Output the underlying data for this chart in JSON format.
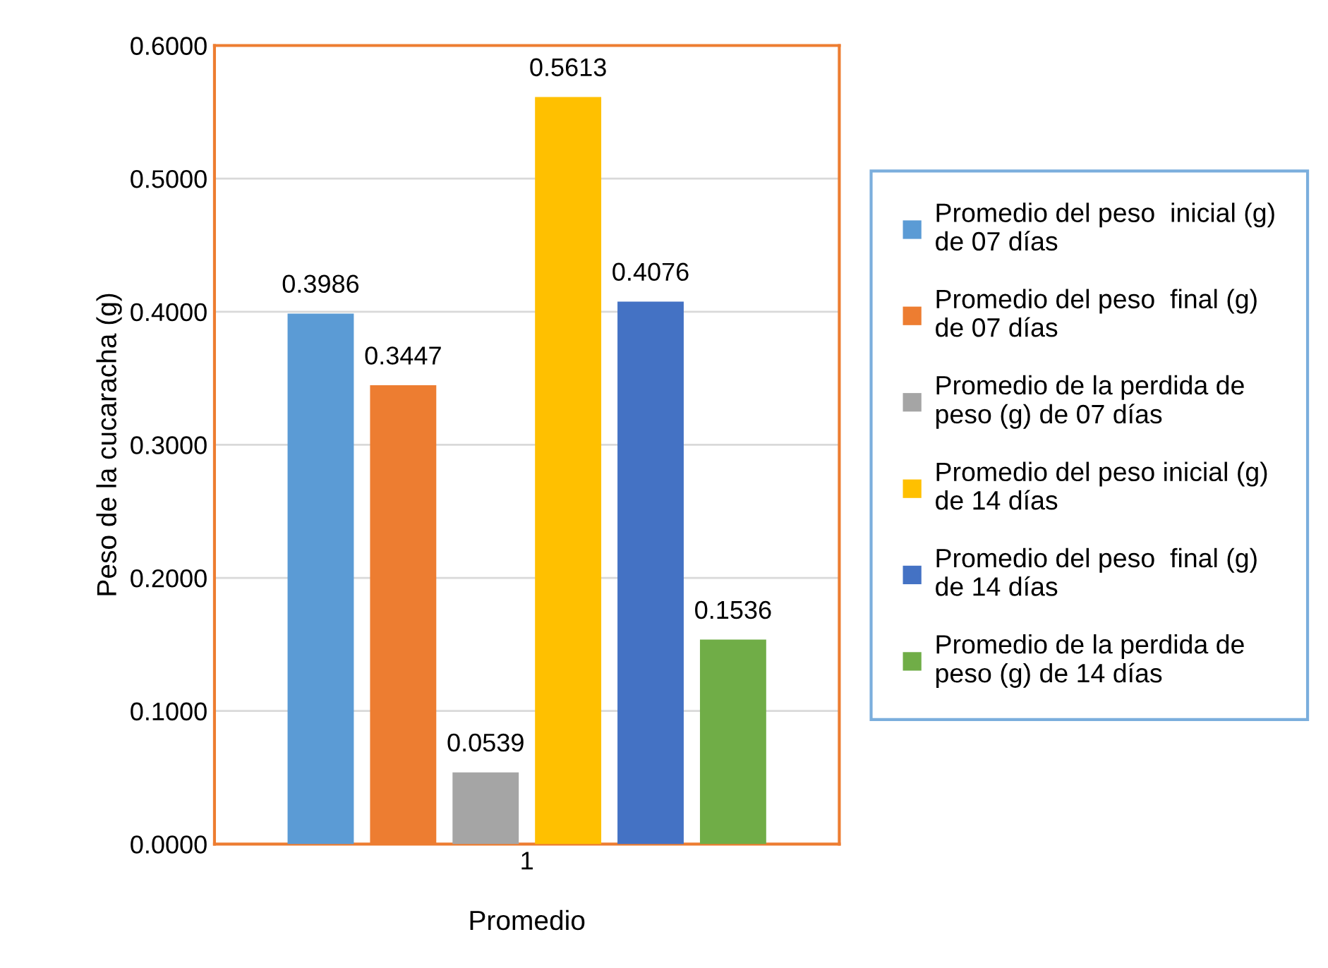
{
  "chart_data": {
    "type": "bar",
    "xlabel": "Promedio",
    "ylabel": "Peso de la cucaracha (g)",
    "categories": [
      "1"
    ],
    "series": [
      {
        "name": "Promedio del peso  inicial (g)\nde 07 días",
        "color": "#5b9bd5",
        "values": [
          0.3986
        ]
      },
      {
        "name": "Promedio del peso  final (g)\nde 07 días",
        "color": "#ed7d31",
        "values": [
          0.3447
        ]
      },
      {
        "name": "Promedio de la perdida de\npeso (g) de 07 días",
        "color": "#a5a5a5",
        "values": [
          0.0539
        ]
      },
      {
        "name": "Promedio del peso inicial (g)\nde 14 días",
        "color": "#ffc000",
        "values": [
          0.5613
        ]
      },
      {
        "name": "Promedio del peso  final (g)\nde 14 días",
        "color": "#4472c4",
        "values": [
          0.4076
        ]
      },
      {
        "name": "Promedio de la perdida de\npeso (g) de 14 días",
        "color": "#70ad47",
        "values": [
          0.1536
        ]
      }
    ],
    "ylim": [
      0,
      0.6
    ],
    "yticks": [
      {
        "value": 0,
        "label": "0.0000"
      },
      {
        "value": 0.1,
        "label": "0.1000"
      },
      {
        "value": 0.2,
        "label": "0.2000"
      },
      {
        "value": 0.3,
        "label": "0.3000"
      },
      {
        "value": 0.4,
        "label": "0.4000"
      },
      {
        "value": 0.5,
        "label": "0.5000"
      },
      {
        "value": 0.6,
        "label": "0.6000"
      }
    ],
    "grid": "y",
    "legend": "right",
    "data_labels": true
  }
}
